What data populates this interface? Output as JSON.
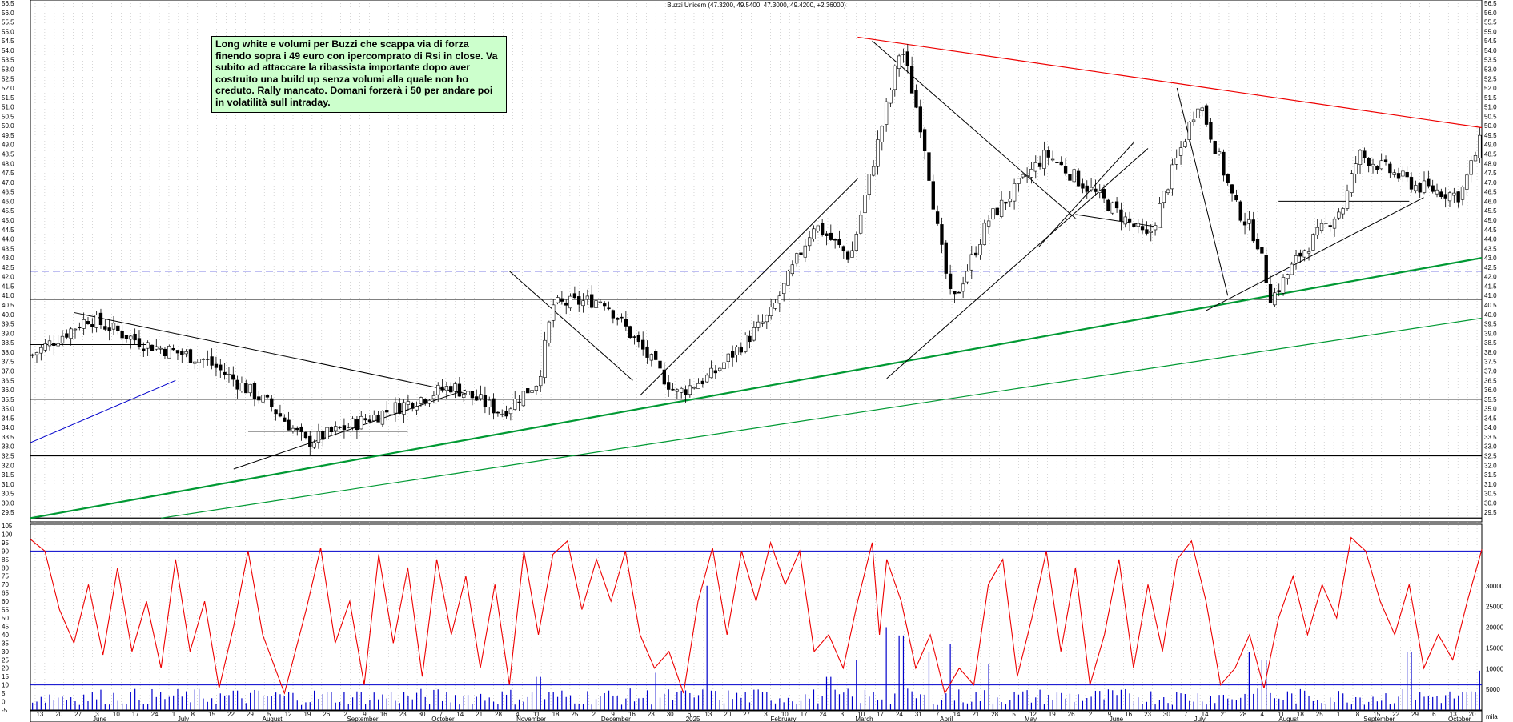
{
  "chart_data": {
    "type": "candlestick",
    "title": "Buzzi Unicem (47.3200, 49.5400, 47.3000, 49.4200, +2.36000)",
    "annotation": "Long white e volumi per Buzzi che scappa via di forza finendo sopra i 49 euro con ipercomprato di Rsi in close. Va subito ad attaccare la ribassista importante dopo aver costruito una build up senza volumi alla quale non ho creduto. Rally mancato. Domani forzerà i 50 per andare poi in volatilità sull intraday.",
    "price_axis": {
      "min": 29.0,
      "max": 56.5,
      "step": 0.5
    },
    "price_labels": [
      "56.5",
      "56.0",
      "55.5",
      "55.0",
      "54.5",
      "54.0",
      "53.5",
      "53.0",
      "52.5",
      "52.0",
      "51.5",
      "51.0",
      "50.5",
      "50.0",
      "49.5",
      "49.0",
      "48.5",
      "48.0",
      "47.5",
      "47.0",
      "46.5",
      "46.0",
      "45.5",
      "45.0",
      "44.5",
      "44.0",
      "43.5",
      "43.0",
      "42.5",
      "42.0",
      "41.5",
      "41.0",
      "40.5",
      "40.0",
      "39.5",
      "39.0",
      "38.5",
      "38.0",
      "37.5",
      "37.0",
      "36.5",
      "36.0",
      "35.5",
      "35.0",
      "34.5",
      "34.0",
      "33.5",
      "33.0",
      "32.5",
      "32.0",
      "31.5",
      "31.0",
      "30.5",
      "30.0",
      "29.5"
    ],
    "osc_labels": [
      "105",
      "100",
      "95",
      "90",
      "85",
      "80",
      "75",
      "70",
      "65",
      "60",
      "55",
      "50",
      "45",
      "40",
      "35",
      "30",
      "25",
      "20",
      "15",
      "10",
      "5",
      "0",
      "-5"
    ],
    "volume_labels": [
      "30000",
      "25000",
      "20000",
      "15000",
      "10000",
      "5000"
    ],
    "volume_unit": "mila",
    "day_ticks": [
      "13",
      "20",
      "27",
      "3",
      "10",
      "17",
      "24",
      "1",
      "8",
      "15",
      "22",
      "29",
      "5",
      "12",
      "19",
      "26",
      "2",
      "9",
      "16",
      "23",
      "30",
      "7",
      "14",
      "21",
      "28",
      "4",
      "11",
      "18",
      "25",
      "2",
      "9",
      "16",
      "23",
      "30",
      "6",
      "13",
      "20",
      "27",
      "3",
      "10",
      "17",
      "24",
      "3",
      "10",
      "17",
      "24",
      "31",
      "7",
      "14",
      "21",
      "28",
      "5",
      "12",
      "19",
      "26",
      "2",
      "9",
      "16",
      "23",
      "30",
      "7",
      "14",
      "21",
      "28",
      "4",
      "11",
      "18",
      "25",
      "1",
      "8",
      "15",
      "22",
      "29",
      "6",
      "13",
      "20"
    ],
    "month_labels": [
      "June",
      "July",
      "August",
      "September",
      "October",
      "November",
      "December",
      "2025",
      "February",
      "March",
      "April",
      "May",
      "June",
      "July",
      "August",
      "September",
      "October"
    ],
    "horizontal_levels": [
      {
        "value": 42.3,
        "style": "dashed",
        "color": "#0000cc"
      },
      {
        "value": 40.8,
        "style": "solid",
        "color": "#000000"
      },
      {
        "value": 35.5,
        "style": "solid",
        "color": "#000000"
      },
      {
        "value": 32.5,
        "style": "solid",
        "color": "#000000"
      },
      {
        "value": 29.2,
        "style": "solid",
        "color": "#000000"
      }
    ],
    "overbought_level": 90,
    "oversold_level": 10,
    "last_close": 49.42,
    "candle_sections": [
      {
        "from": 0,
        "to": 0.04,
        "start": 37.8,
        "end": 39.8
      },
      {
        "from": 0.04,
        "to": 0.08,
        "start": 39.8,
        "end": 38.4
      },
      {
        "from": 0.08,
        "to": 0.12,
        "start": 38.4,
        "end": 37.6
      },
      {
        "from": 0.12,
        "to": 0.165,
        "start": 37.6,
        "end": 35.2
      },
      {
        "from": 0.165,
        "to": 0.19,
        "start": 35.2,
        "end": 33.2
      },
      {
        "from": 0.19,
        "to": 0.25,
        "start": 33.2,
        "end": 35.0
      },
      {
        "from": 0.25,
        "to": 0.29,
        "start": 35.0,
        "end": 36.2
      },
      {
        "from": 0.29,
        "to": 0.325,
        "start": 36.2,
        "end": 34.8
      },
      {
        "from": 0.325,
        "to": 0.35,
        "start": 34.8,
        "end": 36.5
      },
      {
        "from": 0.35,
        "to": 0.36,
        "start": 36.5,
        "end": 40.5
      },
      {
        "from": 0.36,
        "to": 0.395,
        "start": 40.5,
        "end": 40.8
      },
      {
        "from": 0.395,
        "to": 0.445,
        "start": 40.8,
        "end": 35.8
      },
      {
        "from": 0.445,
        "to": 0.47,
        "start": 35.8,
        "end": 36.8
      },
      {
        "from": 0.47,
        "to": 0.51,
        "start": 36.8,
        "end": 40.0
      },
      {
        "from": 0.51,
        "to": 0.54,
        "start": 40.0,
        "end": 44.8
      },
      {
        "from": 0.54,
        "to": 0.565,
        "start": 44.8,
        "end": 43.0
      },
      {
        "from": 0.565,
        "to": 0.6,
        "start": 43.0,
        "end": 54.3
      },
      {
        "from": 0.6,
        "to": 0.615,
        "start": 54.3,
        "end": 49.5
      },
      {
        "from": 0.615,
        "to": 0.625,
        "start": 49.5,
        "end": 44.5
      },
      {
        "from": 0.625,
        "to": 0.635,
        "start": 44.5,
        "end": 40.5
      },
      {
        "from": 0.635,
        "to": 0.66,
        "start": 40.5,
        "end": 45.0
      },
      {
        "from": 0.66,
        "to": 0.7,
        "start": 45.0,
        "end": 48.5
      },
      {
        "from": 0.7,
        "to": 0.74,
        "start": 48.5,
        "end": 46.0
      },
      {
        "from": 0.74,
        "to": 0.77,
        "start": 46.0,
        "end": 44.0
      },
      {
        "from": 0.77,
        "to": 0.805,
        "start": 44.0,
        "end": 51.4
      },
      {
        "from": 0.805,
        "to": 0.83,
        "start": 51.4,
        "end": 45.8
      },
      {
        "from": 0.83,
        "to": 0.845,
        "start": 45.8,
        "end": 44.0
      },
      {
        "from": 0.845,
        "to": 0.855,
        "start": 44.0,
        "end": 40.8
      },
      {
        "from": 0.855,
        "to": 0.875,
        "start": 40.8,
        "end": 43.2
      },
      {
        "from": 0.875,
        "to": 0.905,
        "start": 43.2,
        "end": 45.8
      },
      {
        "from": 0.905,
        "to": 0.915,
        "start": 45.8,
        "end": 48.5
      },
      {
        "from": 0.915,
        "to": 0.955,
        "start": 48.5,
        "end": 46.8
      },
      {
        "from": 0.955,
        "to": 0.985,
        "start": 46.8,
        "end": 46.3
      },
      {
        "from": 0.985,
        "to": 1.0,
        "start": 46.3,
        "end": 49.4
      }
    ],
    "rsi_path": [
      [
        0,
        97
      ],
      [
        0.01,
        90
      ],
      [
        0.02,
        55
      ],
      [
        0.03,
        35
      ],
      [
        0.04,
        70
      ],
      [
        0.05,
        28
      ],
      [
        0.06,
        80
      ],
      [
        0.07,
        30
      ],
      [
        0.08,
        60
      ],
      [
        0.09,
        20
      ],
      [
        0.1,
        85
      ],
      [
        0.11,
        30
      ],
      [
        0.12,
        60
      ],
      [
        0.13,
        8
      ],
      [
        0.14,
        45
      ],
      [
        0.15,
        90
      ],
      [
        0.16,
        40
      ],
      [
        0.175,
        5
      ],
      [
        0.19,
        55
      ],
      [
        0.2,
        92
      ],
      [
        0.21,
        35
      ],
      [
        0.22,
        60
      ],
      [
        0.23,
        10
      ],
      [
        0.24,
        88
      ],
      [
        0.25,
        35
      ],
      [
        0.26,
        80
      ],
      [
        0.27,
        15
      ],
      [
        0.28,
        85
      ],
      [
        0.29,
        40
      ],
      [
        0.3,
        75
      ],
      [
        0.31,
        20
      ],
      [
        0.32,
        70
      ],
      [
        0.33,
        10
      ],
      [
        0.34,
        90
      ],
      [
        0.35,
        40
      ],
      [
        0.36,
        88
      ],
      [
        0.37,
        96
      ],
      [
        0.38,
        55
      ],
      [
        0.39,
        85
      ],
      [
        0.4,
        60
      ],
      [
        0.41,
        90
      ],
      [
        0.42,
        40
      ],
      [
        0.43,
        20
      ],
      [
        0.44,
        30
      ],
      [
        0.45,
        5
      ],
      [
        0.46,
        60
      ],
      [
        0.47,
        92
      ],
      [
        0.48,
        40
      ],
      [
        0.49,
        90
      ],
      [
        0.5,
        60
      ],
      [
        0.51,
        95
      ],
      [
        0.52,
        70
      ],
      [
        0.53,
        90
      ],
      [
        0.54,
        30
      ],
      [
        0.55,
        40
      ],
      [
        0.56,
        20
      ],
      [
        0.57,
        60
      ],
      [
        0.58,
        95
      ],
      [
        0.585,
        40
      ],
      [
        0.59,
        85
      ],
      [
        0.6,
        60
      ],
      [
        0.61,
        20
      ],
      [
        0.62,
        40
      ],
      [
        0.63,
        5
      ],
      [
        0.64,
        20
      ],
      [
        0.65,
        10
      ],
      [
        0.66,
        70
      ],
      [
        0.67,
        85
      ],
      [
        0.68,
        15
      ],
      [
        0.69,
        50
      ],
      [
        0.7,
        90
      ],
      [
        0.71,
        30
      ],
      [
        0.72,
        80
      ],
      [
        0.73,
        10
      ],
      [
        0.74,
        40
      ],
      [
        0.75,
        85
      ],
      [
        0.76,
        20
      ],
      [
        0.77,
        70
      ],
      [
        0.78,
        30
      ],
      [
        0.79,
        85
      ],
      [
        0.8,
        96
      ],
      [
        0.81,
        60
      ],
      [
        0.82,
        10
      ],
      [
        0.83,
        20
      ],
      [
        0.84,
        40
      ],
      [
        0.85,
        8
      ],
      [
        0.86,
        50
      ],
      [
        0.87,
        75
      ],
      [
        0.88,
        40
      ],
      [
        0.89,
        70
      ],
      [
        0.9,
        50
      ],
      [
        0.91,
        98
      ],
      [
        0.92,
        90
      ],
      [
        0.93,
        60
      ],
      [
        0.94,
        40
      ],
      [
        0.95,
        70
      ],
      [
        0.96,
        20
      ],
      [
        0.97,
        40
      ],
      [
        0.98,
        25
      ],
      [
        0.99,
        60
      ],
      [
        1.0,
        91
      ]
    ],
    "volume_spikes": [
      [
        0.35,
        8000
      ],
      [
        0.43,
        9000
      ],
      [
        0.465,
        30000
      ],
      [
        0.55,
        8000
      ],
      [
        0.57,
        12000
      ],
      [
        0.59,
        20000
      ],
      [
        0.6,
        18000
      ],
      [
        0.62,
        14000
      ],
      [
        0.635,
        16000
      ],
      [
        0.66,
        11000
      ],
      [
        0.84,
        14000
      ],
      [
        0.85,
        12000
      ],
      [
        0.95,
        14000
      ],
      [
        1.0,
        9500
      ]
    ],
    "typical_volume": 4000
  }
}
